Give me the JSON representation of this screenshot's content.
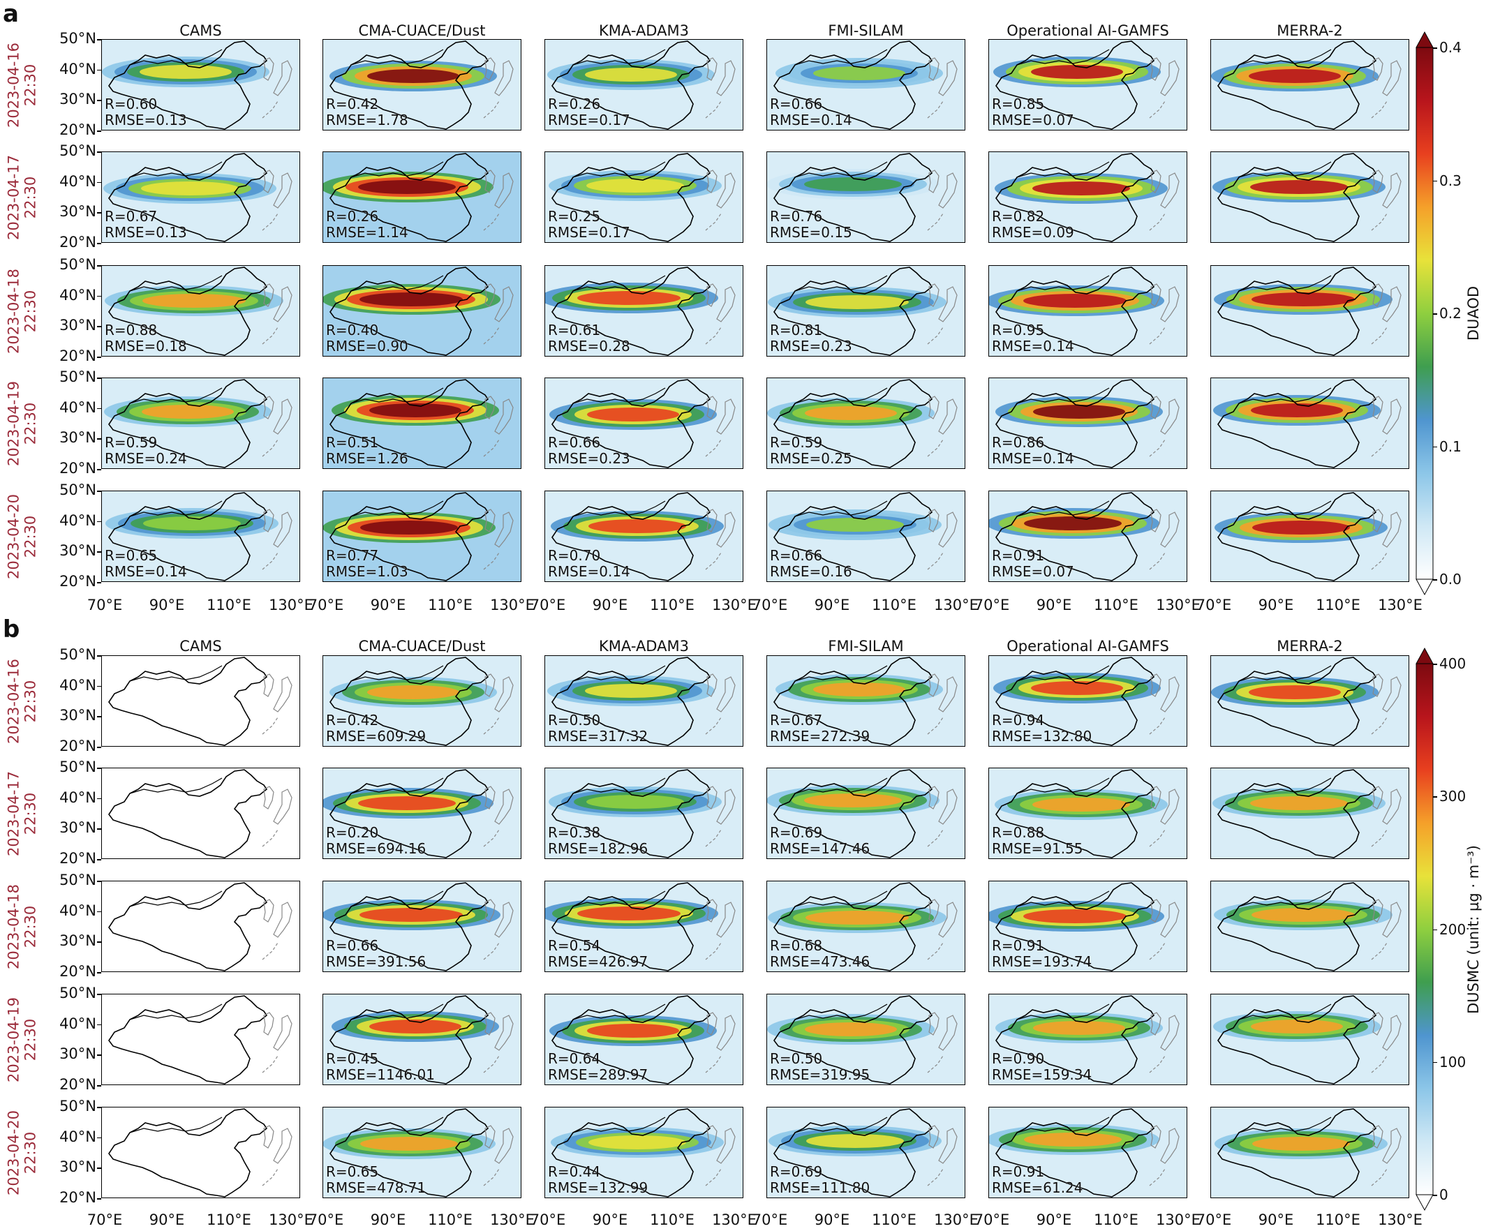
{
  "panels": [
    {
      "letter": "a",
      "variable": "DUAOD",
      "colorbar": {
        "title": "DUAOD",
        "ticks": [
          "0.0",
          "0.1",
          "0.2",
          "0.3",
          "0.4"
        ]
      },
      "models": [
        "CAMS",
        "CMA-CUACE/Dust",
        "KMA-ADAM3",
        "FMI-SILAM",
        "Operational AI-GAMFS",
        "MERRA-2"
      ],
      "rows": [
        {
          "date": "2023-04-16",
          "time": "22:30",
          "stats": [
            {
              "r": "R=0.60",
              "rmse": "RMSE=0.13"
            },
            {
              "r": "R=0.42",
              "rmse": "RMSE=1.78"
            },
            {
              "r": "R=0.26",
              "rmse": "RMSE=0.17"
            },
            {
              "r": "R=0.66",
              "rmse": "RMSE=0.14"
            },
            {
              "r": "R=0.85",
              "rmse": "RMSE=0.07"
            },
            null
          ]
        },
        {
          "date": "2023-04-17",
          "time": "22:30",
          "stats": [
            {
              "r": "R=0.67",
              "rmse": "RMSE=0.13"
            },
            {
              "r": "R=0.26",
              "rmse": "RMSE=1.14"
            },
            {
              "r": "R=0.25",
              "rmse": "RMSE=0.17"
            },
            {
              "r": "R=0.76",
              "rmse": "RMSE=0.15"
            },
            {
              "r": "R=0.82",
              "rmse": "RMSE=0.09"
            },
            null
          ]
        },
        {
          "date": "2023-04-18",
          "time": "22:30",
          "stats": [
            {
              "r": "R=0.88",
              "rmse": "RMSE=0.18"
            },
            {
              "r": "R=0.40",
              "rmse": "RMSE=0.90"
            },
            {
              "r": "R=0.61",
              "rmse": "RMSE=0.28"
            },
            {
              "r": "R=0.81",
              "rmse": "RMSE=0.23"
            },
            {
              "r": "R=0.95",
              "rmse": "RMSE=0.14"
            },
            null
          ]
        },
        {
          "date": "2023-04-19",
          "time": "22:30",
          "stats": [
            {
              "r": "R=0.59",
              "rmse": "RMSE=0.24"
            },
            {
              "r": "R=0.51",
              "rmse": "RMSE=1.26"
            },
            {
              "r": "R=0.66",
              "rmse": "RMSE=0.23"
            },
            {
              "r": "R=0.59",
              "rmse": "RMSE=0.25"
            },
            {
              "r": "R=0.86",
              "rmse": "RMSE=0.14"
            },
            null
          ]
        },
        {
          "date": "2023-04-20",
          "time": "22:30",
          "stats": [
            {
              "r": "R=0.65",
              "rmse": "RMSE=0.14"
            },
            {
              "r": "R=0.77",
              "rmse": "RMSE=1.03"
            },
            {
              "r": "R=0.70",
              "rmse": "RMSE=0.14"
            },
            {
              "r": "R=0.66",
              "rmse": "RMSE=0.16"
            },
            {
              "r": "R=0.91",
              "rmse": "RMSE=0.07"
            },
            null
          ]
        }
      ]
    },
    {
      "letter": "b",
      "variable": "DUSMC",
      "colorbar": {
        "title": "DUSMC (unit: µg · m⁻³)",
        "ticks": [
          "0",
          "100",
          "200",
          "300",
          "400"
        ]
      },
      "models": [
        "CAMS",
        "CMA-CUACE/Dust",
        "KMA-ADAM3",
        "FMI-SILAM",
        "Operational AI-GAMFS",
        "MERRA-2"
      ],
      "rows": [
        {
          "date": "2023-04-16",
          "time": "22:30",
          "stats": [
            null,
            {
              "r": "R=0.42",
              "rmse": "RMSE=609.29"
            },
            {
              "r": "R=0.50",
              "rmse": "RMSE=317.32"
            },
            {
              "r": "R=0.67",
              "rmse": "RMSE=272.39"
            },
            {
              "r": "R=0.94",
              "rmse": "RMSE=132.80"
            },
            null
          ]
        },
        {
          "date": "2023-04-17",
          "time": "22:30",
          "stats": [
            null,
            {
              "r": "R=0.20",
              "rmse": "RMSE=694.16"
            },
            {
              "r": "R=0.38",
              "rmse": "RMSE=182.96"
            },
            {
              "r": "R=0.69",
              "rmse": "RMSE=147.46"
            },
            {
              "r": "R=0.88",
              "rmse": "RMSE=91.55"
            },
            null
          ]
        },
        {
          "date": "2023-04-18",
          "time": "22:30",
          "stats": [
            null,
            {
              "r": "R=0.66",
              "rmse": "RMSE=391.56"
            },
            {
              "r": "R=0.54",
              "rmse": "RMSE=426.97"
            },
            {
              "r": "R=0.68",
              "rmse": "RMSE=473.46"
            },
            {
              "r": "R=0.91",
              "rmse": "RMSE=193.74"
            },
            null
          ]
        },
        {
          "date": "2023-04-19",
          "time": "22:30",
          "stats": [
            null,
            {
              "r": "R=0.45",
              "rmse": "RMSE=1146.01"
            },
            {
              "r": "R=0.64",
              "rmse": "RMSE=289.97"
            },
            {
              "r": "R=0.50",
              "rmse": "RMSE=319.95"
            },
            {
              "r": "R=0.90",
              "rmse": "RMSE=159.34"
            },
            null
          ]
        },
        {
          "date": "2023-04-20",
          "time": "22:30",
          "stats": [
            null,
            {
              "r": "R=0.65",
              "rmse": "RMSE=478.71"
            },
            {
              "r": "R=0.44",
              "rmse": "RMSE=132.99"
            },
            {
              "r": "R=0.69",
              "rmse": "RMSE=111.80"
            },
            {
              "r": "R=0.91",
              "rmse": "RMSE=61.24"
            },
            null
          ]
        }
      ]
    }
  ],
  "axes": {
    "lat_ticks": [
      "50°N",
      "40°N",
      "30°N",
      "20°N"
    ],
    "lon_ticks": [
      "70°E",
      "90°E",
      "110°E",
      "130°E"
    ]
  },
  "colormap": [
    "#ffffff",
    "#cfe8f5",
    "#8cc6e8",
    "#4f95cf",
    "#3f9e4f",
    "#8fcf3f",
    "#e8e23a",
    "#f5a02a",
    "#e8401f",
    "#b8151c",
    "#7d0a10"
  ],
  "dust_intensity": {
    "a": [
      [
        0.55,
        0.95,
        0.55,
        0.45,
        0.85,
        0.9
      ],
      [
        0.6,
        1.0,
        0.6,
        0.4,
        0.85,
        0.85
      ],
      [
        0.7,
        1.0,
        0.75,
        0.55,
        0.9,
        0.9
      ],
      [
        0.65,
        1.0,
        0.8,
        0.65,
        0.95,
        0.9
      ],
      [
        0.5,
        1.0,
        0.8,
        0.45,
        0.95,
        0.9
      ]
    ],
    "b": [
      [
        0.0,
        0.7,
        0.55,
        0.65,
        0.75,
        0.75
      ],
      [
        0.0,
        0.75,
        0.5,
        0.65,
        0.7,
        0.7
      ],
      [
        0.0,
        0.8,
        0.75,
        0.7,
        0.75,
        0.7
      ],
      [
        0.0,
        0.75,
        0.75,
        0.7,
        0.7,
        0.7
      ],
      [
        0.0,
        0.7,
        0.6,
        0.55,
        0.7,
        0.7
      ]
    ]
  }
}
